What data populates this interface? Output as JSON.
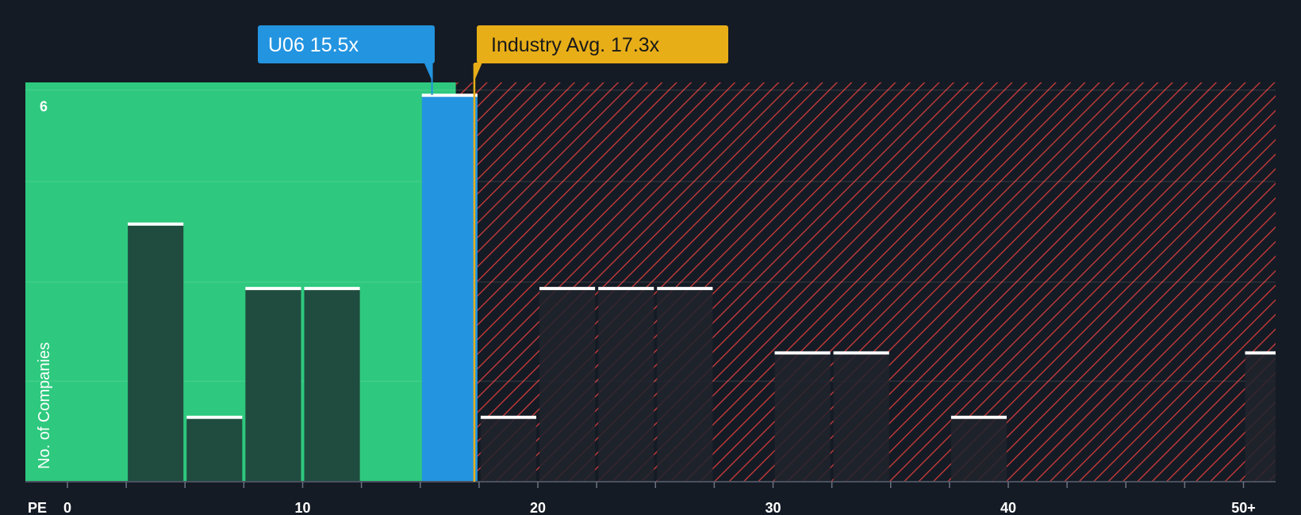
{
  "chart_data": {
    "type": "bar",
    "x_axis_label": "PE",
    "ylabel": "No. of Companies",
    "x_ticks": [
      "0",
      "10",
      "20",
      "30",
      "40",
      "50+"
    ],
    "y_ticks": [
      "6"
    ],
    "ylim": [
      0,
      6.2
    ],
    "xlim": [
      -1.8,
      51.5
    ],
    "bin_width": 2.5,
    "bins": [
      {
        "x_start": 2.5,
        "value": 4
      },
      {
        "x_start": 5.0,
        "value": 1
      },
      {
        "x_start": 7.5,
        "value": 3
      },
      {
        "x_start": 10.0,
        "value": 3
      },
      {
        "x_start": 15.0,
        "value": 6,
        "highlight": true
      },
      {
        "x_start": 17.5,
        "value": 1
      },
      {
        "x_start": 20.0,
        "value": 3
      },
      {
        "x_start": 22.5,
        "value": 3
      },
      {
        "x_start": 25.0,
        "value": 3
      },
      {
        "x_start": 30.0,
        "value": 2
      },
      {
        "x_start": 32.5,
        "value": 2
      },
      {
        "x_start": 37.5,
        "value": 1
      },
      {
        "x_start": 50.0,
        "value": 2
      }
    ],
    "company_marker": {
      "label": "U06 15.5x",
      "pe": 15.5
    },
    "industry_marker": {
      "label": "Industry Avg. 17.3x",
      "pe": 17.3
    },
    "grid": true,
    "colors": {
      "background": "#151b24",
      "good_zone": "#2ec97e",
      "bad_zone_hatch": "#d23c3c",
      "bar_green_zone": "#1f4c3f",
      "bar_red_zone": "#20232d",
      "company": "#2394e0",
      "industry": "#e8ae18",
      "cap": "#ffffff"
    }
  }
}
